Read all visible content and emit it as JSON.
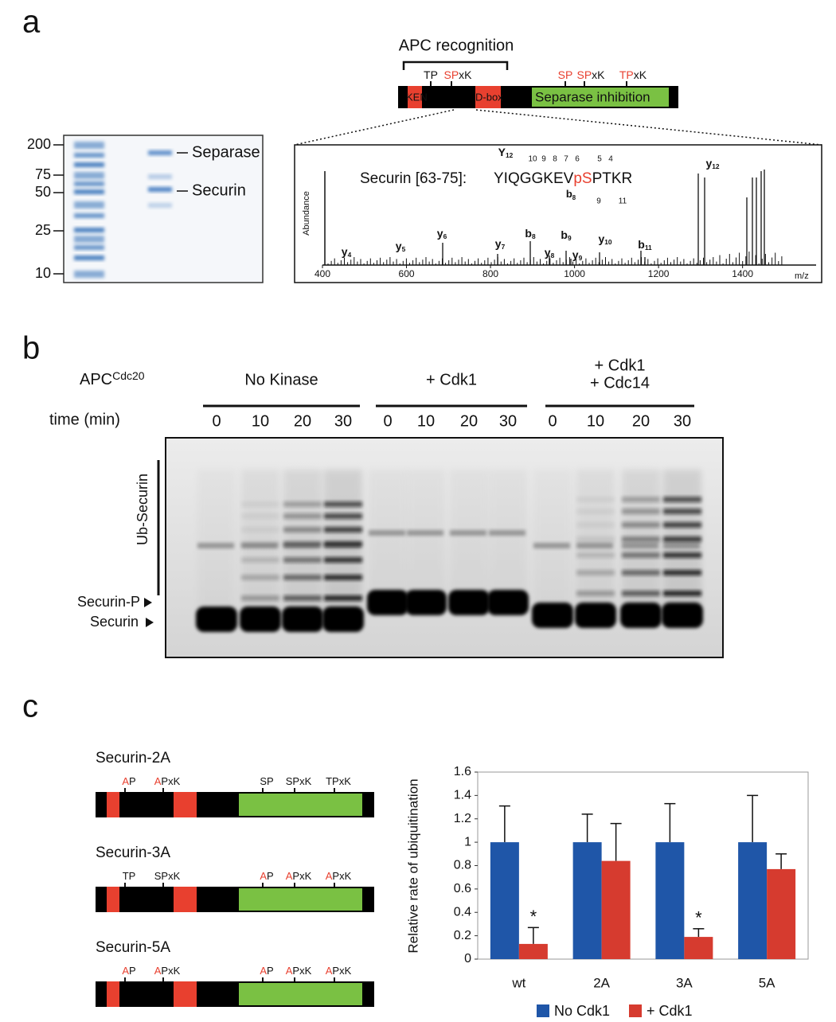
{
  "panel_a": {
    "label": "a",
    "apc_recognition": "APC recognition",
    "motifs": [
      {
        "black": "TP"
      },
      {
        "red": "SP",
        "black": "xK"
      },
      {
        "red": "SP"
      },
      {
        "red": "SP",
        "black": "xK"
      },
      {
        "red": "TP",
        "black": "xK"
      }
    ],
    "domains": [
      "KEN",
      "D-box",
      "Separase inhibition"
    ],
    "gel": {
      "markers": [
        200,
        75,
        50,
        25,
        10
      ],
      "bands": [
        "Separase",
        "Securin"
      ]
    },
    "spectrum": {
      "peptide": "Securin [63-75]:",
      "sequence": [
        {
          "black": "YIQGGKEV"
        },
        {
          "red": "pS"
        },
        {
          "black": "PTKR"
        }
      ],
      "sequence_ions": [
        {
          "ion": "Y",
          "n": "12"
        },
        {
          "ion": "b",
          "n": "8"
        }
      ],
      "fragments_top": [
        "10",
        "9",
        "8",
        "7",
        "6",
        "5",
        "4"
      ],
      "fragments_bottom": [
        "9",
        "11"
      ],
      "y_label": "Abundance",
      "x_label": "m/z",
      "xlim": [
        400,
        1575
      ],
      "xticks": [
        400,
        600,
        800,
        1000,
        1200,
        1400
      ],
      "ions": [
        {
          "ion": "y",
          "n": "4"
        },
        {
          "ion": "y",
          "n": "5"
        },
        {
          "ion": "y",
          "n": "6"
        },
        {
          "ion": "y",
          "n": "7"
        },
        {
          "ion": "b",
          "n": "8"
        },
        {
          "ion": "y",
          "n": "8"
        },
        {
          "ion": "b",
          "n": "9"
        },
        {
          "ion": "y",
          "n": "9"
        },
        {
          "ion": "y",
          "n": "10"
        },
        {
          "ion": "b",
          "n": "11"
        },
        {
          "ion": "y",
          "n": "12"
        }
      ]
    }
  },
  "panel_b": {
    "label": "b",
    "enzyme": {
      "base": "APC",
      "sup": "Cdc20"
    },
    "time_label": "time (min)",
    "groups": [
      {
        "name": [
          "No Kinase"
        ],
        "times": [
          0,
          10,
          20,
          30
        ]
      },
      {
        "name": [
          "+ Cdk1"
        ],
        "times": [
          0,
          10,
          20,
          30
        ]
      },
      {
        "name": [
          "+ Cdk1",
          "+ Cdc14"
        ],
        "times": [
          0,
          10,
          20,
          30
        ]
      }
    ],
    "gel_labels": {
      "ub": "Ub-Securin",
      "phospho": "Securin-P",
      "securin": "Securin"
    }
  },
  "panel_c": {
    "label": "c",
    "constructs": [
      {
        "name": "Securin-2A",
        "motifs": [
          {
            "red": "A",
            "black": "P"
          },
          {
            "red": "A",
            "black": "PxK"
          },
          {
            "black": "SP"
          },
          {
            "black": "SPxK"
          },
          {
            "black": "TPxK"
          }
        ]
      },
      {
        "name": "Securin-3A",
        "motifs": [
          {
            "black": "TP"
          },
          {
            "black": "SPxK"
          },
          {
            "red": "A",
            "black": "P"
          },
          {
            "red": "A",
            "black": "PxK"
          },
          {
            "red": "A",
            "black": "PxK"
          }
        ]
      },
      {
        "name": "Securin-5A",
        "motifs": [
          {
            "red": "A",
            "black": "P"
          },
          {
            "red": "A",
            "black": "PxK"
          },
          {
            "red": "A",
            "black": "P"
          },
          {
            "red": "A",
            "black": "PxK"
          },
          {
            "red": "A",
            "black": "PxK"
          }
        ]
      }
    ]
  },
  "chart_data": {
    "type": "bar",
    "y_label": "Relative rate of ubiquitination",
    "categories": [
      "wt",
      "2A",
      "3A",
      "5A"
    ],
    "series": [
      {
        "name": "No Cdk1",
        "color": "#1f56a8",
        "values": [
          1,
          1,
          1,
          1
        ],
        "errors": [
          0.31,
          0.24,
          0.33,
          0.4
        ]
      },
      {
        "name": "+ Cdk1",
        "color": "#d63b2f",
        "values": [
          0.13,
          0.84,
          0.19,
          0.77
        ],
        "errors": [
          0.14,
          0.32,
          0.07,
          0.13
        ]
      }
    ],
    "annotations": [
      "*",
      null,
      "*",
      null
    ],
    "ylim": [
      0,
      1.6
    ],
    "yticks": [
      0,
      0.2,
      0.4,
      0.6,
      0.8,
      1,
      1.2,
      1.4,
      1.6
    ]
  }
}
